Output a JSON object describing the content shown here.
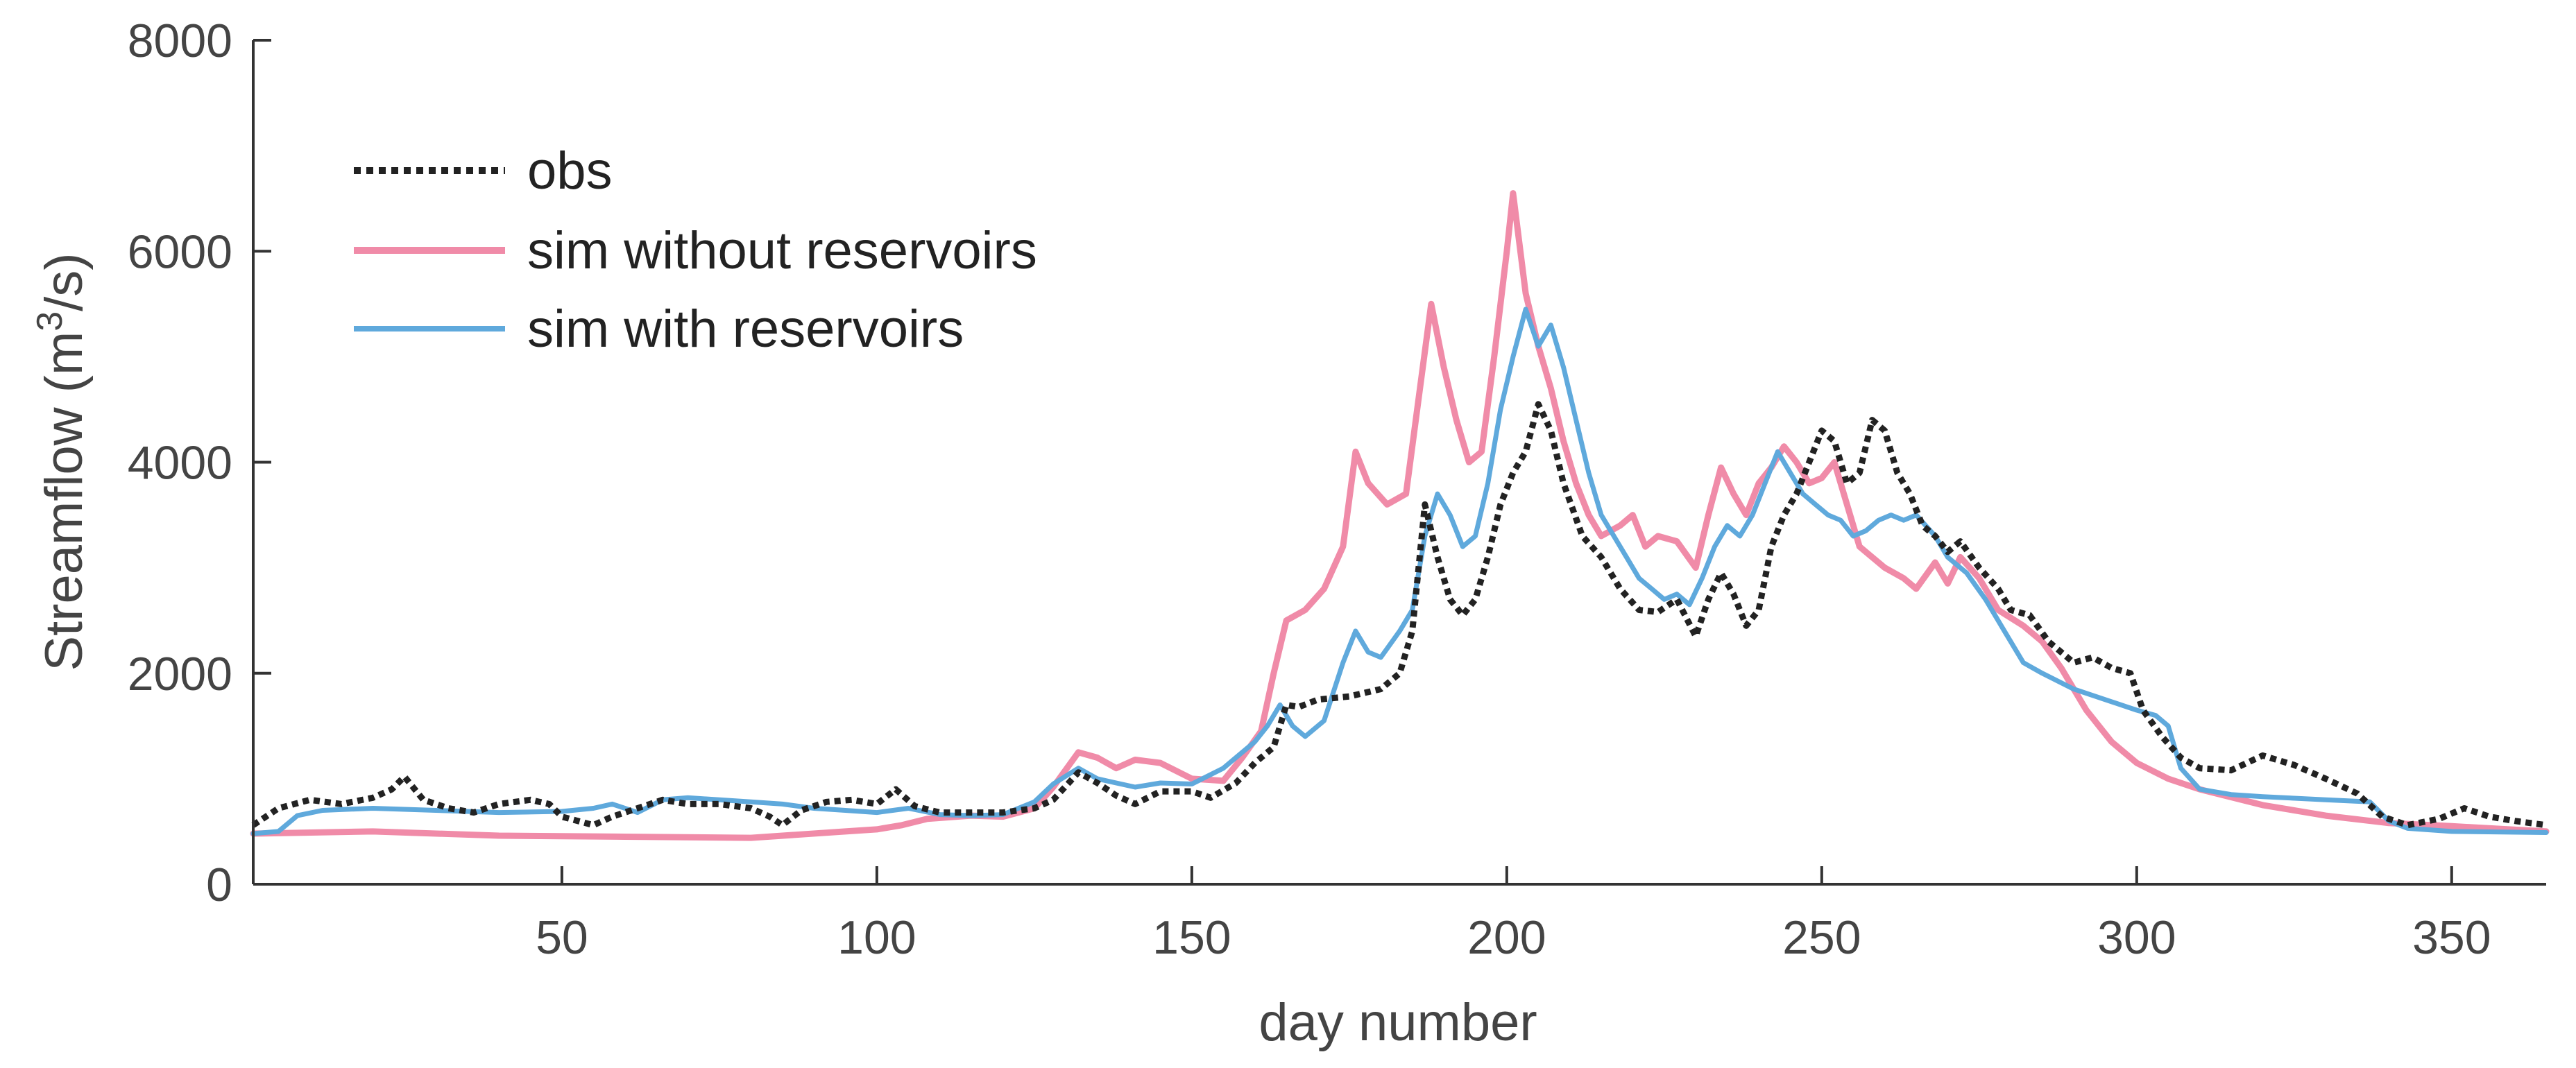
{
  "chart_data": {
    "type": "line",
    "title": "",
    "xlabel": "day number",
    "ylabel_parts": {
      "prefix": "Streamflow (m",
      "superscript": "3",
      "suffix": "/s)"
    },
    "xlim": [
      1,
      365
    ],
    "ylim": [
      0,
      8000
    ],
    "xticks": [
      50,
      100,
      150,
      200,
      250,
      300,
      350
    ],
    "yticks": [
      0,
      2000,
      4000,
      6000,
      8000
    ],
    "grid": false,
    "legend_position": "top-left",
    "series": [
      {
        "name": "obs",
        "color": "#222222",
        "style": "dotted",
        "points": [
          [
            1,
            560
          ],
          [
            5,
            720
          ],
          [
            10,
            800
          ],
          [
            15,
            760
          ],
          [
            20,
            820
          ],
          [
            23,
            900
          ],
          [
            25,
            1020
          ],
          [
            28,
            800
          ],
          [
            32,
            720
          ],
          [
            36,
            680
          ],
          [
            40,
            760
          ],
          [
            45,
            800
          ],
          [
            48,
            760
          ],
          [
            50,
            640
          ],
          [
            55,
            560
          ],
          [
            58,
            640
          ],
          [
            62,
            720
          ],
          [
            66,
            800
          ],
          [
            70,
            760
          ],
          [
            75,
            760
          ],
          [
            80,
            720
          ],
          [
            83,
            640
          ],
          [
            85,
            560
          ],
          [
            88,
            700
          ],
          [
            92,
            780
          ],
          [
            96,
            800
          ],
          [
            100,
            760
          ],
          [
            103,
            900
          ],
          [
            106,
            740
          ],
          [
            110,
            680
          ],
          [
            115,
            680
          ],
          [
            120,
            680
          ],
          [
            125,
            720
          ],
          [
            128,
            800
          ],
          [
            132,
            1060
          ],
          [
            135,
            960
          ],
          [
            138,
            840
          ],
          [
            141,
            760
          ],
          [
            145,
            880
          ],
          [
            150,
            880
          ],
          [
            153,
            820
          ],
          [
            157,
            960
          ],
          [
            160,
            1150
          ],
          [
            163,
            1300
          ],
          [
            165,
            1700
          ],
          [
            167,
            1680
          ],
          [
            170,
            1750
          ],
          [
            175,
            1780
          ],
          [
            180,
            1850
          ],
          [
            183,
            2000
          ],
          [
            185,
            2400
          ],
          [
            187,
            3600
          ],
          [
            189,
            3100
          ],
          [
            191,
            2700
          ],
          [
            193,
            2550
          ],
          [
            195,
            2700
          ],
          [
            197,
            3100
          ],
          [
            199,
            3600
          ],
          [
            201,
            3900
          ],
          [
            203,
            4100
          ],
          [
            205,
            4550
          ],
          [
            207,
            4300
          ],
          [
            209,
            3800
          ],
          [
            212,
            3300
          ],
          [
            215,
            3100
          ],
          [
            218,
            2800
          ],
          [
            221,
            2600
          ],
          [
            224,
            2580
          ],
          [
            227,
            2700
          ],
          [
            230,
            2350
          ],
          [
            232,
            2700
          ],
          [
            234,
            2950
          ],
          [
            236,
            2750
          ],
          [
            238,
            2450
          ],
          [
            240,
            2600
          ],
          [
            242,
            3200
          ],
          [
            244,
            3500
          ],
          [
            246,
            3700
          ],
          [
            248,
            4000
          ],
          [
            250,
            4300
          ],
          [
            252,
            4200
          ],
          [
            254,
            3800
          ],
          [
            256,
            3900
          ],
          [
            258,
            4400
          ],
          [
            260,
            4300
          ],
          [
            262,
            3900
          ],
          [
            264,
            3700
          ],
          [
            266,
            3400
          ],
          [
            268,
            3300
          ],
          [
            270,
            3150
          ],
          [
            272,
            3250
          ],
          [
            275,
            3000
          ],
          [
            278,
            2800
          ],
          [
            280,
            2600
          ],
          [
            283,
            2550
          ],
          [
            286,
            2300
          ],
          [
            290,
            2100
          ],
          [
            293,
            2150
          ],
          [
            296,
            2050
          ],
          [
            299,
            2000
          ],
          [
            301,
            1650
          ],
          [
            304,
            1400
          ],
          [
            307,
            1200
          ],
          [
            310,
            1100
          ],
          [
            315,
            1080
          ],
          [
            320,
            1220
          ],
          [
            325,
            1130
          ],
          [
            330,
            1000
          ],
          [
            335,
            860
          ],
          [
            339,
            640
          ],
          [
            343,
            560
          ],
          [
            348,
            620
          ],
          [
            352,
            720
          ],
          [
            356,
            640
          ],
          [
            360,
            600
          ],
          [
            365,
            560
          ]
        ]
      },
      {
        "name": "sim without reservoirs",
        "color": "#f08ba8",
        "style": "solid",
        "points": [
          [
            1,
            480
          ],
          [
            20,
            500
          ],
          [
            40,
            460
          ],
          [
            60,
            450
          ],
          [
            80,
            440
          ],
          [
            95,
            500
          ],
          [
            100,
            520
          ],
          [
            104,
            560
          ],
          [
            108,
            620
          ],
          [
            115,
            650
          ],
          [
            120,
            640
          ],
          [
            125,
            720
          ],
          [
            128,
            920
          ],
          [
            132,
            1250
          ],
          [
            135,
            1200
          ],
          [
            138,
            1100
          ],
          [
            141,
            1180
          ],
          [
            145,
            1150
          ],
          [
            150,
            1000
          ],
          [
            155,
            980
          ],
          [
            158,
            1200
          ],
          [
            161,
            1450
          ],
          [
            163,
            2000
          ],
          [
            165,
            2500
          ],
          [
            168,
            2600
          ],
          [
            171,
            2800
          ],
          [
            174,
            3200
          ],
          [
            176,
            4100
          ],
          [
            178,
            3800
          ],
          [
            181,
            3600
          ],
          [
            184,
            3700
          ],
          [
            186,
            4600
          ],
          [
            188,
            5500
          ],
          [
            190,
            4900
          ],
          [
            192,
            4400
          ],
          [
            194,
            4000
          ],
          [
            196,
            4100
          ],
          [
            198,
            5000
          ],
          [
            200,
            6000
          ],
          [
            201,
            6550
          ],
          [
            203,
            5600
          ],
          [
            205,
            5100
          ],
          [
            207,
            4700
          ],
          [
            209,
            4200
          ],
          [
            211,
            3800
          ],
          [
            213,
            3500
          ],
          [
            215,
            3300
          ],
          [
            218,
            3400
          ],
          [
            220,
            3500
          ],
          [
            222,
            3200
          ],
          [
            224,
            3300
          ],
          [
            227,
            3250
          ],
          [
            230,
            3000
          ],
          [
            232,
            3500
          ],
          [
            234,
            3950
          ],
          [
            236,
            3700
          ],
          [
            238,
            3500
          ],
          [
            240,
            3800
          ],
          [
            242,
            3950
          ],
          [
            244,
            4150
          ],
          [
            246,
            4000
          ],
          [
            248,
            3800
          ],
          [
            250,
            3850
          ],
          [
            252,
            4000
          ],
          [
            254,
            3600
          ],
          [
            256,
            3200
          ],
          [
            258,
            3100
          ],
          [
            260,
            3000
          ],
          [
            263,
            2900
          ],
          [
            265,
            2800
          ],
          [
            268,
            3050
          ],
          [
            270,
            2850
          ],
          [
            272,
            3100
          ],
          [
            275,
            2900
          ],
          [
            278,
            2600
          ],
          [
            282,
            2450
          ],
          [
            285,
            2300
          ],
          [
            288,
            2050
          ],
          [
            292,
            1650
          ],
          [
            296,
            1350
          ],
          [
            300,
            1150
          ],
          [
            305,
            1000
          ],
          [
            310,
            900
          ],
          [
            320,
            750
          ],
          [
            330,
            650
          ],
          [
            340,
            580
          ],
          [
            350,
            550
          ],
          [
            365,
            500
          ]
        ]
      },
      {
        "name": "sim with reservoirs",
        "color": "#5fa9dc",
        "style": "solid",
        "points": [
          [
            1,
            480
          ],
          [
            5,
            500
          ],
          [
            8,
            650
          ],
          [
            12,
            700
          ],
          [
            20,
            720
          ],
          [
            30,
            700
          ],
          [
            40,
            680
          ],
          [
            50,
            690
          ],
          [
            55,
            720
          ],
          [
            58,
            760
          ],
          [
            62,
            680
          ],
          [
            66,
            800
          ],
          [
            70,
            820
          ],
          [
            75,
            800
          ],
          [
            80,
            780
          ],
          [
            85,
            760
          ],
          [
            90,
            720
          ],
          [
            95,
            700
          ],
          [
            100,
            680
          ],
          [
            105,
            720
          ],
          [
            110,
            660
          ],
          [
            115,
            650
          ],
          [
            120,
            660
          ],
          [
            125,
            780
          ],
          [
            128,
            950
          ],
          [
            132,
            1100
          ],
          [
            135,
            1000
          ],
          [
            138,
            960
          ],
          [
            141,
            920
          ],
          [
            145,
            960
          ],
          [
            150,
            950
          ],
          [
            155,
            1100
          ],
          [
            158,
            1250
          ],
          [
            160,
            1350
          ],
          [
            162,
            1500
          ],
          [
            164,
            1700
          ],
          [
            166,
            1500
          ],
          [
            168,
            1400
          ],
          [
            171,
            1550
          ],
          [
            174,
            2100
          ],
          [
            176,
            2400
          ],
          [
            178,
            2200
          ],
          [
            180,
            2150
          ],
          [
            183,
            2400
          ],
          [
            185,
            2600
          ],
          [
            187,
            3300
          ],
          [
            189,
            3700
          ],
          [
            191,
            3500
          ],
          [
            193,
            3200
          ],
          [
            195,
            3300
          ],
          [
            197,
            3800
          ],
          [
            199,
            4500
          ],
          [
            201,
            5000
          ],
          [
            203,
            5450
          ],
          [
            205,
            5100
          ],
          [
            207,
            5300
          ],
          [
            209,
            4900
          ],
          [
            211,
            4400
          ],
          [
            213,
            3900
          ],
          [
            215,
            3500
          ],
          [
            217,
            3300
          ],
          [
            219,
            3100
          ],
          [
            221,
            2900
          ],
          [
            223,
            2800
          ],
          [
            225,
            2700
          ],
          [
            227,
            2750
          ],
          [
            229,
            2650
          ],
          [
            231,
            2900
          ],
          [
            233,
            3200
          ],
          [
            235,
            3400
          ],
          [
            237,
            3300
          ],
          [
            239,
            3500
          ],
          [
            241,
            3800
          ],
          [
            243,
            4100
          ],
          [
            245,
            3900
          ],
          [
            247,
            3700
          ],
          [
            249,
            3600
          ],
          [
            251,
            3500
          ],
          [
            253,
            3450
          ],
          [
            255,
            3300
          ],
          [
            257,
            3350
          ],
          [
            259,
            3450
          ],
          [
            261,
            3500
          ],
          [
            263,
            3450
          ],
          [
            265,
            3500
          ],
          [
            268,
            3300
          ],
          [
            270,
            3100
          ],
          [
            273,
            2950
          ],
          [
            276,
            2700
          ],
          [
            279,
            2400
          ],
          [
            282,
            2100
          ],
          [
            285,
            2000
          ],
          [
            290,
            1850
          ],
          [
            295,
            1750
          ],
          [
            300,
            1650
          ],
          [
            303,
            1600
          ],
          [
            305,
            1500
          ],
          [
            307,
            1100
          ],
          [
            310,
            900
          ],
          [
            315,
            850
          ],
          [
            320,
            830
          ],
          [
            330,
            800
          ],
          [
            337,
            780
          ],
          [
            340,
            600
          ],
          [
            343,
            530
          ],
          [
            350,
            500
          ],
          [
            365,
            490
          ]
        ]
      }
    ]
  }
}
